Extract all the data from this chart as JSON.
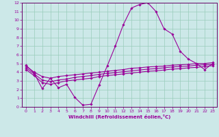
{
  "xlabel": "Windchill (Refroidissement éolien,°C)",
  "background_color": "#cce8e8",
  "grid_color": "#99ccbb",
  "line_color": "#990099",
  "spine_color": "#660066",
  "xlim": [
    -0.5,
    23.5
  ],
  "ylim": [
    0,
    12
  ],
  "xticks": [
    0,
    1,
    2,
    3,
    4,
    5,
    6,
    7,
    8,
    9,
    10,
    11,
    12,
    13,
    14,
    15,
    16,
    17,
    18,
    19,
    20,
    21,
    22,
    23
  ],
  "yticks": [
    0,
    1,
    2,
    3,
    4,
    5,
    6,
    7,
    8,
    9,
    10,
    11,
    12
  ],
  "tick_fontsize": 4.5,
  "xlabel_fontsize": 5.0,
  "line1_x": [
    0,
    1,
    2,
    3,
    4,
    5,
    6,
    7,
    8,
    9,
    10,
    11,
    12,
    13,
    14,
    15,
    16,
    17,
    18,
    19,
    20,
    21,
    22,
    23
  ],
  "line1_y": [
    4.8,
    3.9,
    2.1,
    3.3,
    2.2,
    2.6,
    1.1,
    0.2,
    0.3,
    2.5,
    4.7,
    7.0,
    9.5,
    11.4,
    11.8,
    12.0,
    11.0,
    9.0,
    8.4,
    6.4,
    5.5,
    5.0,
    4.3,
    5.0
  ],
  "line2_x": [
    0,
    1,
    2,
    3,
    4,
    5,
    6,
    7,
    8,
    9,
    10,
    11,
    12,
    13,
    14,
    15,
    16,
    17,
    18,
    19,
    20,
    21,
    22,
    23
  ],
  "line2_y": [
    4.7,
    4.0,
    3.5,
    3.3,
    3.5,
    3.6,
    3.7,
    3.8,
    3.9,
    4.0,
    4.1,
    4.2,
    4.3,
    4.45,
    4.5,
    4.6,
    4.65,
    4.7,
    4.8,
    4.85,
    4.9,
    5.0,
    5.0,
    5.1
  ],
  "line3_x": [
    0,
    1,
    2,
    3,
    4,
    5,
    6,
    7,
    8,
    9,
    10,
    11,
    12,
    13,
    14,
    15,
    16,
    17,
    18,
    19,
    20,
    21,
    22,
    23
  ],
  "line3_y": [
    4.5,
    3.8,
    3.1,
    2.9,
    3.1,
    3.2,
    3.4,
    3.5,
    3.6,
    3.75,
    3.85,
    3.95,
    4.05,
    4.15,
    4.25,
    4.35,
    4.4,
    4.5,
    4.6,
    4.65,
    4.7,
    4.8,
    4.85,
    4.9
  ],
  "line4_x": [
    0,
    1,
    2,
    3,
    4,
    5,
    6,
    7,
    8,
    9,
    10,
    11,
    12,
    13,
    14,
    15,
    16,
    17,
    18,
    19,
    20,
    21,
    22,
    23
  ],
  "line4_y": [
    4.3,
    3.6,
    2.8,
    2.6,
    2.8,
    3.0,
    3.1,
    3.2,
    3.3,
    3.5,
    3.6,
    3.7,
    3.8,
    3.9,
    4.0,
    4.1,
    4.15,
    4.25,
    4.35,
    4.4,
    4.5,
    4.55,
    4.65,
    4.75
  ]
}
